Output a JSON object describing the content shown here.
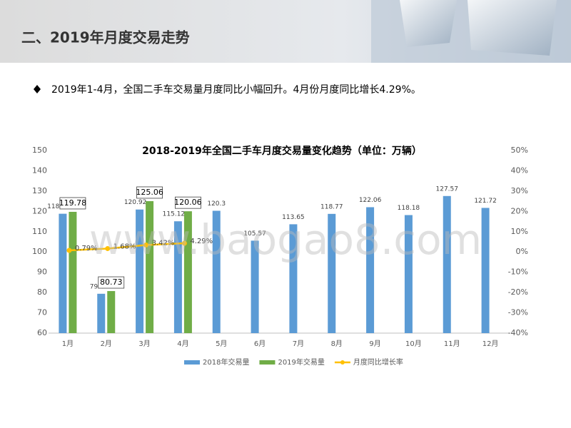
{
  "header": {
    "title": "二、2019年月度交易走势"
  },
  "bullet": "2019年1-4月，全国二手车交易量月度同比小幅回升。4月份月度同比增长4.29%。",
  "watermark": "www.baogao8.com",
  "chart_data": {
    "type": "bar",
    "title": "2018-2019年全国二手车月度交易量变化趋势（单位：万辆）",
    "categories": [
      "1月",
      "2月",
      "3月",
      "4月",
      "5月",
      "6月",
      "7月",
      "8月",
      "9月",
      "10月",
      "11月",
      "12月"
    ],
    "series": [
      {
        "name": "2018年交易量",
        "color": "#5b9bd5",
        "values": [
          118.84,
          79.4,
          120.92,
          115.12,
          120.3,
          105.57,
          113.65,
          118.77,
          122.06,
          118.18,
          127.57,
          121.72
        ]
      },
      {
        "name": "2019年交易量",
        "color": "#70ad47",
        "values": [
          119.78,
          80.73,
          125.06,
          120.06,
          null,
          null,
          null,
          null,
          null,
          null,
          null,
          null
        ]
      },
      {
        "name": "月度同比增长率",
        "type": "line",
        "axis": "y2",
        "color": "#ffc000",
        "values": [
          0.79,
          1.68,
          3.42,
          4.29,
          null,
          null,
          null,
          null,
          null,
          null,
          null,
          null
        ],
        "value_labels": [
          "0.79%",
          "1.68%",
          "3.42%",
          "4.29%",
          null,
          null,
          null,
          null,
          null,
          null,
          null,
          null
        ]
      }
    ],
    "ylim": [
      60,
      150
    ],
    "yticks": [
      60,
      70,
      80,
      90,
      100,
      110,
      120,
      130,
      140,
      150
    ],
    "y2lim": [
      -40,
      50
    ],
    "y2ticks": [
      {
        "value": -40,
        "label": "-40%"
      },
      {
        "value": -30,
        "label": "-30%"
      },
      {
        "value": -20,
        "label": "-20%"
      },
      {
        "value": -10,
        "label": "-10%"
      },
      {
        "value": 0,
        "label": "0%"
      },
      {
        "value": 10,
        "label": "10%"
      },
      {
        "value": 20,
        "label": "20%"
      },
      {
        "value": 30,
        "label": "30%"
      },
      {
        "value": 40,
        "label": "40%"
      },
      {
        "value": 50,
        "label": "50%"
      }
    ],
    "legend": "bottom",
    "grid": false
  }
}
